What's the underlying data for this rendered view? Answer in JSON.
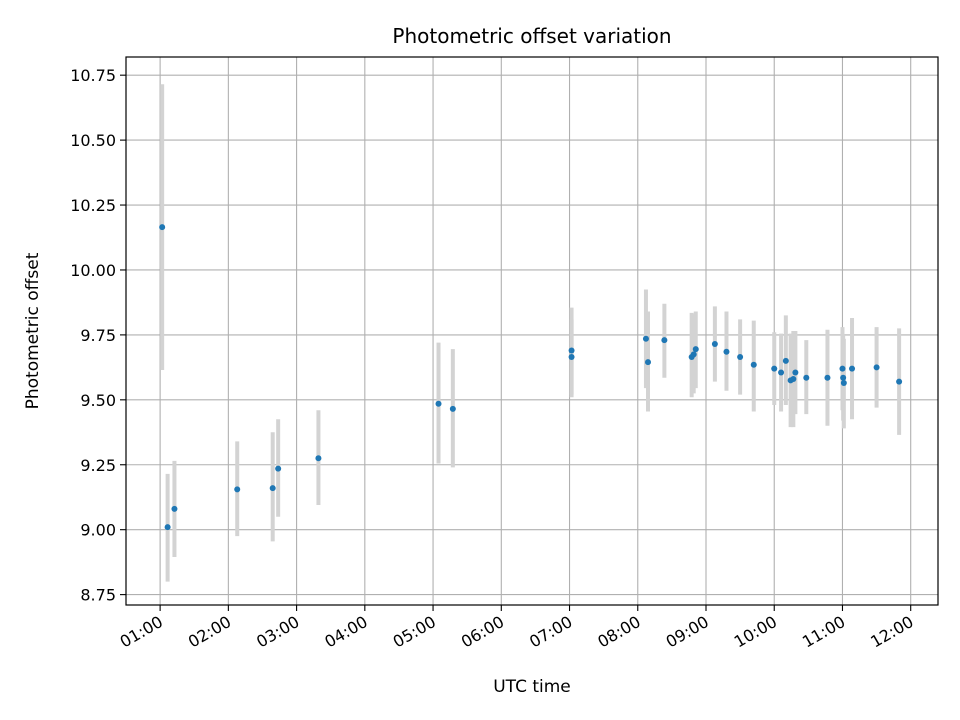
{
  "chart_data": {
    "type": "scatter",
    "title": "Photometric offset variation",
    "xlabel": "UTC time",
    "ylabel": "Photometric offset",
    "grid": true,
    "legend": "none",
    "xlim": [
      0.5,
      12.4
    ],
    "ylim": [
      8.71,
      10.82
    ],
    "x_ticks": [
      {
        "value": 1,
        "label": "01:00"
      },
      {
        "value": 2,
        "label": "02:00"
      },
      {
        "value": 3,
        "label": "03:00"
      },
      {
        "value": 4,
        "label": "04:00"
      },
      {
        "value": 5,
        "label": "05:00"
      },
      {
        "value": 6,
        "label": "06:00"
      },
      {
        "value": 7,
        "label": "07:00"
      },
      {
        "value": 8,
        "label": "08:00"
      },
      {
        "value": 9,
        "label": "09:00"
      },
      {
        "value": 10,
        "label": "10:00"
      },
      {
        "value": 11,
        "label": "11:00"
      },
      {
        "value": 12,
        "label": "12:00"
      }
    ],
    "y_ticks": [
      {
        "value": 8.75,
        "label": "8.75"
      },
      {
        "value": 9.0,
        "label": "9.00"
      },
      {
        "value": 9.25,
        "label": "9.25"
      },
      {
        "value": 9.5,
        "label": "9.50"
      },
      {
        "value": 9.75,
        "label": "9.75"
      },
      {
        "value": 10.0,
        "label": "10.00"
      },
      {
        "value": 10.25,
        "label": "10.25"
      },
      {
        "value": 10.5,
        "label": "10.50"
      },
      {
        "value": 10.75,
        "label": "10.75"
      }
    ],
    "colors": {
      "point": "#1f77b4",
      "errorbar": "#d3d3d3",
      "grid": "#b0b0b0"
    },
    "points": [
      {
        "x": 1.03,
        "y": 10.165,
        "low": 9.615,
        "high": 10.715
      },
      {
        "x": 1.11,
        "y": 9.01,
        "low": 8.8,
        "high": 9.215
      },
      {
        "x": 1.21,
        "y": 9.08,
        "low": 8.895,
        "high": 9.265
      },
      {
        "x": 2.13,
        "y": 9.155,
        "low": 8.975,
        "high": 9.34
      },
      {
        "x": 2.65,
        "y": 9.16,
        "low": 8.955,
        "high": 9.375
      },
      {
        "x": 2.73,
        "y": 9.235,
        "low": 9.05,
        "high": 9.425
      },
      {
        "x": 3.32,
        "y": 9.275,
        "low": 9.095,
        "high": 9.46
      },
      {
        "x": 5.08,
        "y": 9.485,
        "low": 9.255,
        "high": 9.72
      },
      {
        "x": 5.29,
        "y": 9.465,
        "low": 9.24,
        "high": 9.695
      },
      {
        "x": 7.03,
        "y": 9.69,
        "low": 9.52,
        "high": 9.855
      },
      {
        "x": 7.03,
        "y": 9.665,
        "low": 9.51,
        "high": 9.81
      },
      {
        "x": 8.12,
        "y": 9.735,
        "low": 9.545,
        "high": 9.925
      },
      {
        "x": 8.15,
        "y": 9.645,
        "low": 9.455,
        "high": 9.84
      },
      {
        "x": 8.39,
        "y": 9.73,
        "low": 9.585,
        "high": 9.87
      },
      {
        "x": 8.79,
        "y": 9.665,
        "low": 9.51,
        "high": 9.835
      },
      {
        "x": 8.82,
        "y": 9.675,
        "low": 9.525,
        "high": 9.83
      },
      {
        "x": 8.85,
        "y": 9.695,
        "low": 9.545,
        "high": 9.84
      },
      {
        "x": 9.13,
        "y": 9.715,
        "low": 9.57,
        "high": 9.86
      },
      {
        "x": 9.3,
        "y": 9.685,
        "low": 9.535,
        "high": 9.84
      },
      {
        "x": 9.5,
        "y": 9.665,
        "low": 9.52,
        "high": 9.81
      },
      {
        "x": 9.7,
        "y": 9.635,
        "low": 9.455,
        "high": 9.805
      },
      {
        "x": 10.0,
        "y": 9.62,
        "low": 9.48,
        "high": 9.76
      },
      {
        "x": 10.1,
        "y": 9.605,
        "low": 9.455,
        "high": 9.755
      },
      {
        "x": 10.17,
        "y": 9.65,
        "low": 9.48,
        "high": 9.825
      },
      {
        "x": 10.24,
        "y": 9.575,
        "low": 9.395,
        "high": 9.755
      },
      {
        "x": 10.28,
        "y": 9.58,
        "low": 9.395,
        "high": 9.765
      },
      {
        "x": 10.31,
        "y": 9.605,
        "low": 9.445,
        "high": 9.765
      },
      {
        "x": 10.47,
        "y": 9.585,
        "low": 9.445,
        "high": 9.73
      },
      {
        "x": 10.78,
        "y": 9.585,
        "low": 9.4,
        "high": 9.77
      },
      {
        "x": 11.0,
        "y": 9.62,
        "low": 9.46,
        "high": 9.78
      },
      {
        "x": 11.01,
        "y": 9.585,
        "low": 9.42,
        "high": 9.75
      },
      {
        "x": 11.02,
        "y": 9.565,
        "low": 9.39,
        "high": 9.735
      },
      {
        "x": 11.14,
        "y": 9.62,
        "low": 9.425,
        "high": 9.815
      },
      {
        "x": 11.5,
        "y": 9.625,
        "low": 9.47,
        "high": 9.78
      },
      {
        "x": 11.83,
        "y": 9.57,
        "low": 9.365,
        "high": 9.775
      }
    ]
  }
}
